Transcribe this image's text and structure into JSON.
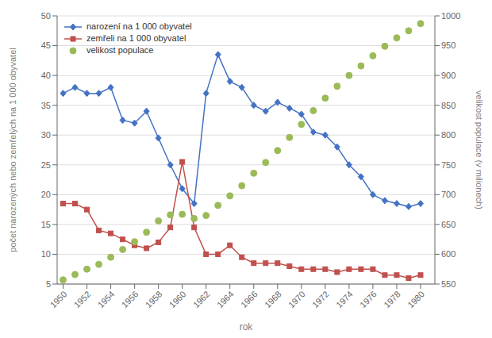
{
  "chart_data": {
    "type": "line",
    "xlabel": "rok",
    "ylabel": "počet narozených nebo zemřelých na 1 000 obyvatel",
    "y2label": "velikost populace (v milionech)",
    "x": [
      1950,
      1951,
      1952,
      1953,
      1954,
      1955,
      1956,
      1957,
      1958,
      1959,
      1960,
      1961,
      1962,
      1963,
      1964,
      1965,
      1966,
      1967,
      1968,
      1969,
      1970,
      1971,
      1972,
      1973,
      1974,
      1975,
      1976,
      1977,
      1978,
      1979,
      1980
    ],
    "series": [
      {
        "name": "narození na 1 000 obyvatel",
        "type": "line",
        "color": "#4472C4",
        "marker": "diamond",
        "values": [
          37.0,
          38.0,
          37.0,
          37.0,
          38.0,
          32.5,
          32.0,
          34.0,
          29.5,
          25.0,
          21.0,
          18.5,
          37.0,
          43.5,
          39.0,
          38.0,
          35.0,
          34.0,
          35.5,
          34.5,
          33.5,
          30.5,
          30.0,
          28.0,
          25.0,
          23.0,
          20.0,
          19.0,
          18.5,
          18.0,
          18.5
        ]
      },
      {
        "name": "zemřeli na 1 000 obyvatel",
        "type": "line",
        "color": "#C0504D",
        "marker": "square",
        "values": [
          18.5,
          18.5,
          17.5,
          14.0,
          13.5,
          12.5,
          11.5,
          11.0,
          12.0,
          14.5,
          25.5,
          14.5,
          10.0,
          10.0,
          11.5,
          9.5,
          8.5,
          8.5,
          8.5,
          8.0,
          7.5,
          7.5,
          7.5,
          7.0,
          7.5,
          7.5,
          7.5,
          6.5,
          6.5,
          6.0,
          6.5
        ]
      },
      {
        "name": "velikost populace",
        "type": "scatter",
        "axis": "y2",
        "color": "#9BBB59",
        "marker": "circle",
        "values": [
          557,
          566,
          575,
          583,
          595,
          608,
          621,
          637,
          656,
          666,
          667,
          660,
          665,
          682,
          698,
          715,
          736,
          754,
          774,
          796,
          818,
          841,
          862,
          882,
          900,
          916,
          933,
          949,
          963,
          975,
          987
        ]
      }
    ],
    "xlim": [
      1949.5,
      1981.2
    ],
    "xticks": [
      1950,
      1952,
      1954,
      1956,
      1958,
      1960,
      1962,
      1964,
      1966,
      1968,
      1970,
      1972,
      1974,
      1976,
      1978,
      1980
    ],
    "ylim": [
      5,
      50
    ],
    "yticks": [
      5,
      10,
      15,
      20,
      25,
      30,
      35,
      40,
      45,
      50
    ],
    "y2lim": [
      550,
      1000
    ],
    "y2ticks": [
      550,
      600,
      650,
      700,
      750,
      800,
      850,
      900,
      950,
      1000
    ],
    "grid": "y",
    "legend": "upper left"
  }
}
